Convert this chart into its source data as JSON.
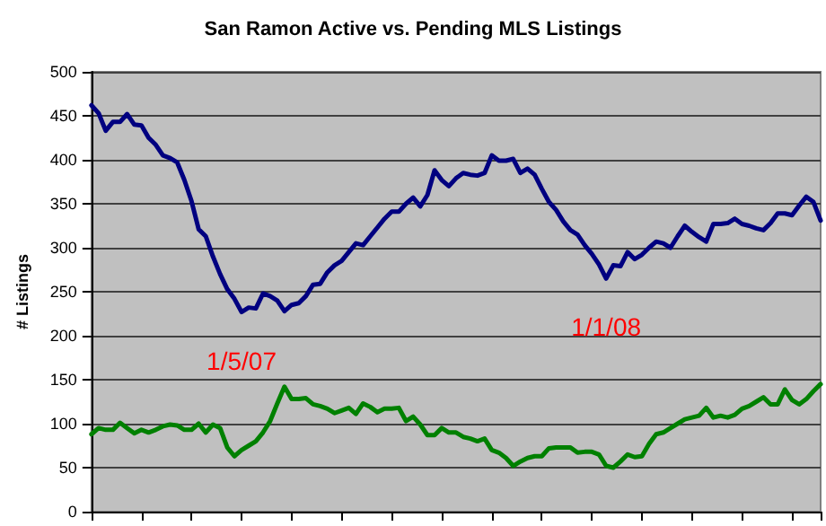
{
  "chart_data": {
    "type": "line",
    "title": "San Ramon Active vs. Pending MLS Listings",
    "ylabel": "# Listings",
    "categories": [
      null,
      null,
      null,
      null,
      null,
      null,
      null,
      null,
      null,
      null,
      null,
      null,
      null,
      null,
      null,
      null,
      null,
      null,
      null,
      null,
      null,
      null,
      null,
      null,
      null,
      null,
      null,
      null,
      null,
      null,
      null,
      null,
      null,
      null,
      null,
      null,
      null,
      null,
      null,
      null,
      null,
      null,
      null,
      null,
      null,
      null,
      null,
      null,
      null,
      null,
      null,
      null,
      null,
      null,
      null,
      null,
      null,
      null,
      null,
      null,
      null,
      null,
      null,
      null,
      null,
      null,
      null,
      null,
      null,
      null,
      null,
      null,
      null,
      null,
      null,
      null,
      null,
      null,
      null,
      null,
      null,
      null,
      null,
      null,
      null,
      null,
      null,
      null,
      null,
      null,
      null,
      null,
      null,
      null,
      null,
      null,
      null,
      null,
      null,
      null,
      null,
      null,
      null
    ],
    "series": [
      {
        "color": "#000080",
        "values": [
          462,
          453,
          433,
          443,
          443,
          452,
          440,
          439,
          425,
          417,
          405,
          402,
          397,
          377,
          353,
          321,
          313,
          290,
          270,
          253,
          242,
          227,
          232,
          231,
          248,
          245,
          240,
          228,
          235,
          237,
          245,
          258,
          259,
          272,
          280,
          285,
          295,
          305,
          303,
          313,
          323,
          333,
          341,
          341,
          350,
          357,
          347,
          360,
          388,
          377,
          370,
          379,
          385,
          383,
          382,
          385,
          405,
          399,
          399,
          401,
          385,
          390,
          383,
          367,
          352,
          343,
          330,
          320,
          315,
          303,
          293,
          281,
          265,
          280,
          279,
          295,
          287,
          292,
          300,
          307,
          305,
          300,
          313,
          325,
          318,
          312,
          307,
          327,
          327,
          328,
          333,
          327,
          325,
          322,
          320,
          328,
          339,
          339,
          337,
          348,
          358,
          352,
          331
        ]
      },
      {
        "color": "#008000",
        "values": [
          88,
          95,
          93,
          93,
          101,
          95,
          89,
          93,
          90,
          93,
          97,
          99,
          98,
          93,
          93,
          100,
          90,
          99,
          95,
          73,
          63,
          70,
          75,
          80,
          90,
          103,
          123,
          142,
          128,
          128,
          129,
          122,
          120,
          117,
          112,
          115,
          118,
          111,
          123,
          119,
          113,
          117,
          117,
          118,
          103,
          108,
          99,
          87,
          87,
          95,
          90,
          90,
          85,
          83,
          80,
          83,
          70,
          67,
          61,
          52,
          57,
          61,
          63,
          63,
          72,
          73,
          73,
          73,
          67,
          68,
          68,
          65,
          52,
          50,
          57,
          65,
          62,
          63,
          77,
          88,
          90,
          95,
          100,
          105,
          107,
          109,
          118,
          107,
          109,
          107,
          110,
          117,
          120,
          125,
          130,
          122,
          122,
          139,
          127,
          122,
          128,
          137,
          145
        ]
      }
    ],
    "ylim": [
      0,
      500
    ],
    "yticks": [
      0,
      50,
      100,
      150,
      200,
      250,
      300,
      350,
      400,
      450,
      500
    ],
    "grid": "y",
    "marker": "none",
    "line_style": "solid",
    "annotations": [
      "1/5/07",
      "1/1/08"
    ]
  }
}
